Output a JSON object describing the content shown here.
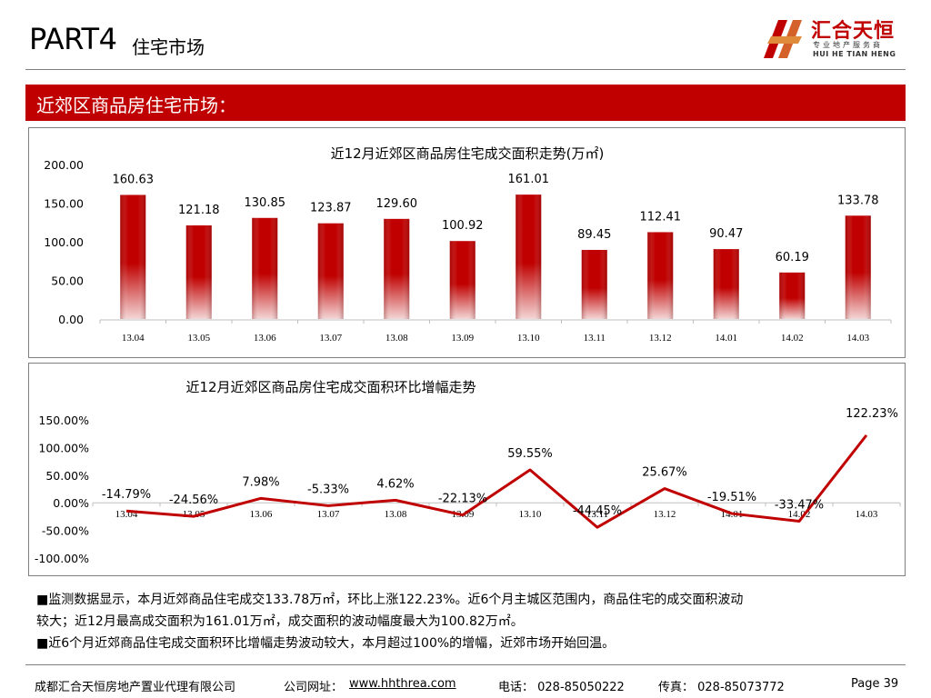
{
  "header": {
    "part": "PART4",
    "part_sub": "住宅市场",
    "logo_cn": "汇合天恒",
    "logo_sub": "专业地产服务商",
    "logo_en": "HUI HE TIAN HENG"
  },
  "banner": {
    "title": "近郊区商品房住宅市场："
  },
  "chart_data": [
    {
      "type": "bar",
      "title": "近12月近郊区商品房住宅成交面积走势(万㎡)",
      "categories": [
        "13.04",
        "13.05",
        "13.06",
        "13.07",
        "13.08",
        "13.09",
        "13.10",
        "13.11",
        "13.12",
        "14.01",
        "14.02",
        "14.03"
      ],
      "values": [
        160.63,
        121.18,
        130.85,
        123.87,
        129.6,
        100.92,
        161.01,
        89.45,
        112.41,
        90.47,
        60.19,
        133.78
      ],
      "value_labels": [
        "160.63",
        "121.18",
        "130.85",
        "123.87",
        "129.60",
        "100.92",
        "161.01",
        "89.45",
        "112.41",
        "90.47",
        "60.19",
        "133.78"
      ],
      "ylim": [
        0,
        200
      ],
      "yticks": [
        "200.00",
        "150.00",
        "100.00",
        "50.00",
        "0.00"
      ],
      "color": "#c00000"
    },
    {
      "type": "line",
      "title": "近12月近郊区商品房住宅成交面积环比增幅走势",
      "categories": [
        "13.04",
        "13.05",
        "13.06",
        "13.07",
        "13.08",
        "13.09",
        "13.10",
        "13.11",
        "13.12",
        "14.01",
        "14.02",
        "14.03"
      ],
      "values": [
        -14.79,
        -24.56,
        7.98,
        -5.33,
        4.62,
        -22.13,
        59.55,
        -44.45,
        25.67,
        -19.51,
        -33.47,
        122.23
      ],
      "value_labels": [
        "-14.79%",
        "-24.56%",
        "7.98%",
        "-5.33%",
        "4.62%",
        "-22.13%",
        "59.55%",
        "-44.45%",
        "25.67%",
        "-19.51%",
        "-33.47%",
        "122.23%"
      ],
      "ylim": [
        -100,
        150
      ],
      "yticks": [
        "150.00%",
        "100.00%",
        "50.00%",
        "0.00%",
        "-50.00%",
        "-100.00%"
      ],
      "color": "#c00000"
    }
  ],
  "notes": [
    "■监测数据显示，本月近郊商品住宅成交133.78万㎡，环比上涨122.23%。近6个月主城区范围内，商品住宅的成交面积波动",
    "较大；近12月最高成交面积为161.01万㎡，成交面积的波动幅度最大为100.82万㎡。",
    "■近6个月近郊商品住宅成交面积环比增幅走势波动较大，本月超过100%的增幅，近郊市场开始回温。"
  ],
  "footer": {
    "company": "成都汇合天恒房地产置业代理有限公司",
    "website_label": "公司网址：",
    "website": "www.hhthrea.com",
    "phone": "电话： 028-85050222",
    "fax": "传真： 028-85073772",
    "page": "Page 39"
  }
}
